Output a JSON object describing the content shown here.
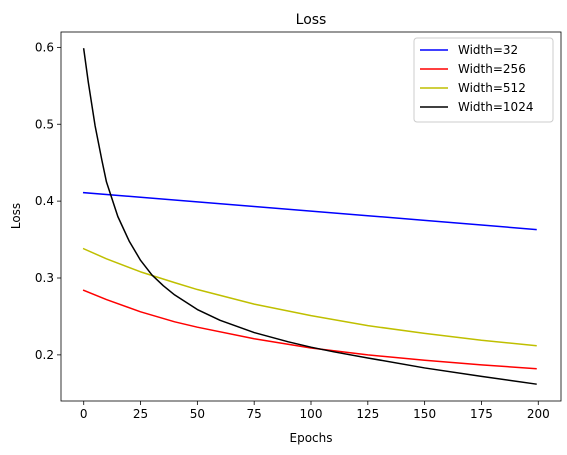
{
  "chart_data": {
    "type": "line",
    "title": "Loss",
    "xlabel": "Epochs",
    "ylabel": "Loss",
    "xlim": [
      -10,
      210
    ],
    "ylim": [
      0.14,
      0.62
    ],
    "xticks": [
      0,
      25,
      50,
      75,
      100,
      125,
      150,
      175,
      200
    ],
    "xtick_labels": [
      "0",
      "25",
      "50",
      "75",
      "100",
      "125",
      "150",
      "175",
      "200"
    ],
    "yticks": [
      0.2,
      0.3,
      0.4,
      0.5,
      0.6
    ],
    "ytick_labels": [
      "0.2",
      "0.3",
      "0.4",
      "0.5",
      "0.6"
    ],
    "grid": false,
    "legend_position": "upper right",
    "series": [
      {
        "name": "Width=32",
        "color": "#0000ff",
        "x": [
          0,
          25,
          50,
          75,
          100,
          125,
          150,
          175,
          199
        ],
        "y": [
          0.411,
          0.405,
          0.399,
          0.393,
          0.387,
          0.381,
          0.375,
          0.369,
          0.363
        ]
      },
      {
        "name": "Width=256",
        "color": "#ff0000",
        "x": [
          0,
          10,
          25,
          40,
          50,
          75,
          100,
          125,
          150,
          175,
          199
        ],
        "y": [
          0.284,
          0.272,
          0.256,
          0.243,
          0.236,
          0.221,
          0.209,
          0.2,
          0.193,
          0.187,
          0.182
        ]
      },
      {
        "name": "Width=512",
        "color": "#bfbf00",
        "x": [
          0,
          10,
          25,
          40,
          50,
          75,
          100,
          125,
          150,
          175,
          199
        ],
        "y": [
          0.338,
          0.325,
          0.308,
          0.294,
          0.285,
          0.266,
          0.251,
          0.238,
          0.228,
          0.219,
          0.212
        ]
      },
      {
        "name": "Width=1024",
        "color": "#000000",
        "x": [
          0,
          2,
          5,
          8,
          10,
          15,
          20,
          25,
          30,
          35,
          40,
          50,
          60,
          75,
          90,
          100,
          110,
          125,
          150,
          175,
          199
        ],
        "y": [
          0.598,
          0.555,
          0.498,
          0.453,
          0.425,
          0.38,
          0.348,
          0.323,
          0.304,
          0.29,
          0.278,
          0.259,
          0.245,
          0.229,
          0.217,
          0.21,
          0.204,
          0.196,
          0.183,
          0.172,
          0.162
        ]
      }
    ]
  }
}
